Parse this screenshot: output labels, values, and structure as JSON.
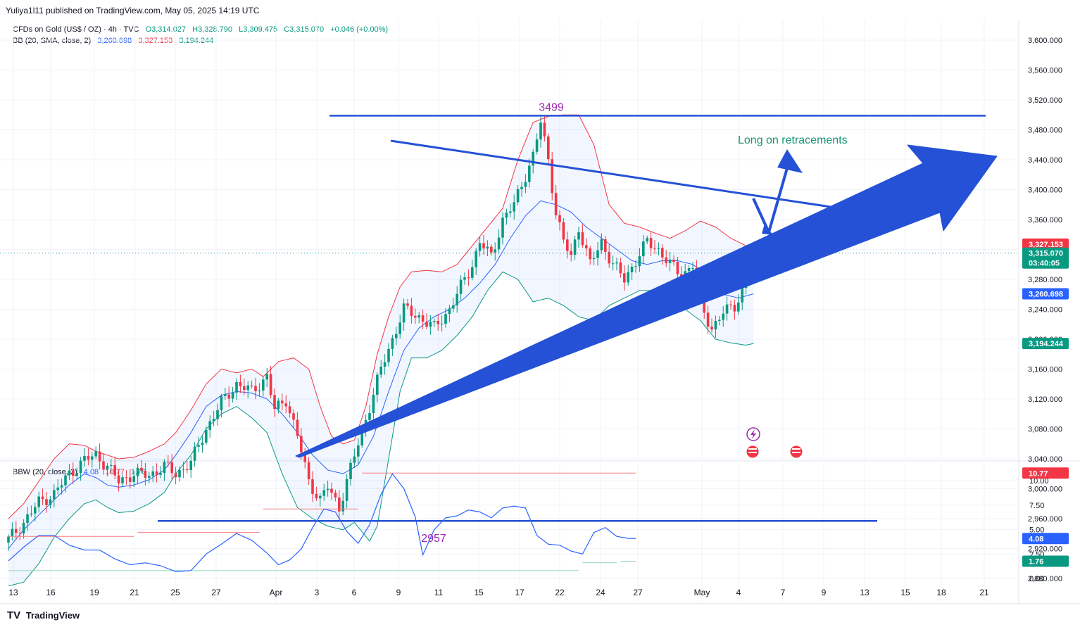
{
  "header": {
    "published": "Yuliya1l11 published on TradingView.com, May 05, 2025 14:19 UTC"
  },
  "legend_main": {
    "symbol": "CFDs on Gold (US$ / OZ) · 4h · TVC",
    "open": "O3,314.027",
    "high": "H3,328.790",
    "low": "L3,309.475",
    "close": "C3,315.070",
    "change": "+0.046 (+0.00%)"
  },
  "legend_bb": {
    "name": "BB (20, SMA, close, 2)",
    "basis": "3,260.698",
    "upper": "3,327.153",
    "lower": "3,194.244"
  },
  "legend_bbw": {
    "name": "BBW (20, close, 2)",
    "value": "4.08",
    "high": "10.77",
    "low": "1.76"
  },
  "annotations": {
    "top_level": "3499",
    "bottom_level": "2957",
    "note": "Long on retracements"
  },
  "price_tags": {
    "upper": "3,327.153",
    "last": "3,315.070",
    "countdown": "03:40:05",
    "basis": "3,260.698",
    "lower": "3,194.244"
  },
  "bbw_tags": {
    "high": "10.77",
    "value": "4.08",
    "low": "1.76"
  },
  "footer": {
    "brand": "TradingView",
    "logo": "TV"
  },
  "colors": {
    "bull": "#089981",
    "bear": "#f23645",
    "basis": "#2962ff",
    "upper": "#f23645",
    "lower": "#089981",
    "drawing": "#2451d6",
    "note": "#16946f",
    "label": "#9c27b0"
  },
  "chart_data": [
    {
      "type": "candlestick",
      "title": "CFDs on Gold (US$ / OZ) · 4h · TVC",
      "x_ticks": [
        "13",
        "16",
        "19",
        "21",
        "25",
        "27",
        "Apr",
        "3",
        "6",
        "9",
        "11",
        "15",
        "17",
        "22",
        "24",
        "27",
        "May",
        "4",
        "7",
        "9",
        "13",
        "15",
        "18",
        "21"
      ],
      "y_ticks": [
        "2,880.000",
        "2,920.000",
        "2,960.000",
        "3,000.000",
        "3,040.000",
        "3,080.000",
        "3,120.000",
        "3,160.000",
        "3,200.000",
        "3,240.000",
        "3,280.000",
        "3,320.000",
        "3,360.000",
        "3,400.000",
        "3,440.000",
        "3,480.000",
        "3,520.000",
        "3,560.000",
        "3,600.000"
      ],
      "ylim": [
        2860,
        3630
      ],
      "anchors_close": [
        [
          0,
          2932
        ],
        [
          4,
          2955
        ],
        [
          8,
          2982
        ],
        [
          12,
          2993
        ],
        [
          16,
          3020
        ],
        [
          20,
          3038
        ],
        [
          23,
          3045
        ],
        [
          26,
          3030
        ],
        [
          29,
          3010
        ],
        [
          33,
          3020
        ],
        [
          37,
          3018
        ],
        [
          41,
          3030
        ],
        [
          44,
          3020
        ],
        [
          48,
          3035
        ],
        [
          52,
          3080
        ],
        [
          56,
          3115
        ],
        [
          60,
          3140
        ],
        [
          64,
          3130
        ],
        [
          68,
          3150
        ],
        [
          70,
          3105
        ],
        [
          73,
          3120
        ],
        [
          76,
          3070
        ],
        [
          79,
          3010
        ],
        [
          82,
          2985
        ],
        [
          84,
          3002
        ],
        [
          87,
          2975
        ],
        [
          89,
          3010
        ],
        [
          92,
          3060
        ],
        [
          95,
          3110
        ],
        [
          98,
          3160
        ],
        [
          101,
          3200
        ],
        [
          104,
          3240
        ],
        [
          108,
          3230
        ],
        [
          112,
          3215
        ],
        [
          116,
          3240
        ],
        [
          119,
          3270
        ],
        [
          122,
          3300
        ],
        [
          124,
          3330
        ],
        [
          127,
          3310
        ],
        [
          130,
          3360
        ],
        [
          133,
          3380
        ],
        [
          136,
          3420
        ],
        [
          138,
          3445
        ],
        [
          140,
          3490
        ],
        [
          142,
          3440
        ],
        [
          144,
          3370
        ],
        [
          146,
          3330
        ],
        [
          148,
          3310
        ],
        [
          150,
          3350
        ],
        [
          153,
          3300
        ],
        [
          156,
          3330
        ],
        [
          159,
          3300
        ],
        [
          162,
          3280
        ],
        [
          165,
          3305
        ],
        [
          168,
          3330
        ],
        [
          171,
          3320
        ],
        [
          174,
          3300
        ],
        [
          177,
          3285
        ],
        [
          180,
          3300
        ],
        [
          182,
          3245
        ],
        [
          185,
          3215
        ],
        [
          188,
          3235
        ],
        [
          191,
          3245
        ],
        [
          193,
          3265
        ],
        [
          195,
          3310
        ],
        [
          196,
          3315
        ]
      ],
      "bb_upper_anchors": [
        [
          0,
          2960
        ],
        [
          4,
          2980
        ],
        [
          8,
          3010
        ],
        [
          12,
          3040
        ],
        [
          16,
          3060
        ],
        [
          20,
          3058
        ],
        [
          23,
          3050
        ],
        [
          26,
          3045
        ],
        [
          29,
          3040
        ],
        [
          33,
          3042
        ],
        [
          37,
          3050
        ],
        [
          41,
          3060
        ],
        [
          44,
          3075
        ],
        [
          48,
          3105
        ],
        [
          52,
          3140
        ],
        [
          56,
          3160
        ],
        [
          60,
          3155
        ],
        [
          64,
          3160
        ],
        [
          67,
          3150
        ],
        [
          71,
          3170
        ],
        [
          75,
          3175
        ],
        [
          79,
          3160
        ],
        [
          82,
          3110
        ],
        [
          85,
          3070
        ],
        [
          88,
          3060
        ],
        [
          91,
          3065
        ],
        [
          94,
          3110
        ],
        [
          97,
          3180
        ],
        [
          100,
          3230
        ],
        [
          103,
          3270
        ],
        [
          106,
          3290
        ],
        [
          110,
          3292
        ],
        [
          114,
          3290
        ],
        [
          118,
          3300
        ],
        [
          122,
          3325
        ],
        [
          126,
          3350
        ],
        [
          130,
          3375
        ],
        [
          134,
          3440
        ],
        [
          138,
          3490
        ],
        [
          142,
          3498
        ],
        [
          146,
          3500
        ],
        [
          150,
          3500
        ],
        [
          154,
          3460
        ],
        [
          158,
          3380
        ],
        [
          162,
          3355
        ],
        [
          166,
          3350
        ],
        [
          170,
          3342
        ],
        [
          174,
          3335
        ],
        [
          178,
          3345
        ],
        [
          182,
          3358
        ],
        [
          186,
          3350
        ],
        [
          190,
          3335
        ],
        [
          194,
          3325
        ],
        [
          196,
          3327
        ]
      ],
      "bb_basis_anchors": [
        [
          0,
          2920
        ],
        [
          4,
          2945
        ],
        [
          8,
          2965
        ],
        [
          12,
          2985
        ],
        [
          16,
          3005
        ],
        [
          20,
          3020
        ],
        [
          23,
          3015
        ],
        [
          26,
          3005
        ],
        [
          29,
          3002
        ],
        [
          33,
          3005
        ],
        [
          37,
          3012
        ],
        [
          41,
          3025
        ],
        [
          44,
          3045
        ],
        [
          48,
          3075
        ],
        [
          52,
          3110
        ],
        [
          56,
          3125
        ],
        [
          60,
          3130
        ],
        [
          64,
          3128
        ],
        [
          68,
          3120
        ],
        [
          72,
          3100
        ],
        [
          76,
          3075
        ],
        [
          80,
          3045
        ],
        [
          84,
          3025
        ],
        [
          88,
          3020
        ],
        [
          92,
          3032
        ],
        [
          96,
          3070
        ],
        [
          100,
          3130
        ],
        [
          104,
          3185
        ],
        [
          108,
          3215
        ],
        [
          112,
          3230
        ],
        [
          116,
          3240
        ],
        [
          120,
          3255
        ],
        [
          124,
          3275
        ],
        [
          128,
          3300
        ],
        [
          132,
          3335
        ],
        [
          136,
          3365
        ],
        [
          140,
          3385
        ],
        [
          144,
          3380
        ],
        [
          148,
          3370
        ],
        [
          152,
          3350
        ],
        [
          156,
          3335
        ],
        [
          160,
          3320
        ],
        [
          164,
          3305
        ],
        [
          168,
          3300
        ],
        [
          172,
          3305
        ],
        [
          176,
          3305
        ],
        [
          180,
          3300
        ],
        [
          184,
          3285
        ],
        [
          188,
          3260
        ],
        [
          192,
          3255
        ],
        [
          196,
          3260.7
        ]
      ],
      "bb_lower_anchors": [
        [
          0,
          2870
        ],
        [
          4,
          2875
        ],
        [
          8,
          2900
        ],
        [
          12,
          2935
        ],
        [
          16,
          2960
        ],
        [
          20,
          2980
        ],
        [
          23,
          2985
        ],
        [
          26,
          2975
        ],
        [
          29,
          2968
        ],
        [
          33,
          2970
        ],
        [
          37,
          2980
        ],
        [
          41,
          2995
        ],
        [
          44,
          3020
        ],
        [
          48,
          3045
        ],
        [
          52,
          3080
        ],
        [
          56,
          3100
        ],
        [
          60,
          3110
        ],
        [
          64,
          3095
        ],
        [
          68,
          3075
        ],
        [
          72,
          3020
        ],
        [
          76,
          2975
        ],
        [
          80,
          2960
        ],
        [
          84,
          2950
        ],
        [
          88,
          2945
        ],
        [
          91,
          2955
        ],
        [
          95,
          2930
        ],
        [
          97,
          2950
        ],
        [
          100,
          3040
        ],
        [
          103,
          3130
        ],
        [
          106,
          3175
        ],
        [
          110,
          3175
        ],
        [
          114,
          3185
        ],
        [
          118,
          3205
        ],
        [
          122,
          3230
        ],
        [
          126,
          3265
        ],
        [
          130,
          3290
        ],
        [
          134,
          3280
        ],
        [
          138,
          3250
        ],
        [
          142,
          3255
        ],
        [
          146,
          3245
        ],
        [
          150,
          3230
        ],
        [
          154,
          3225
        ],
        [
          158,
          3245
        ],
        [
          162,
          3255
        ],
        [
          166,
          3265
        ],
        [
          170,
          3265
        ],
        [
          174,
          3255
        ],
        [
          178,
          3240
        ],
        [
          182,
          3225
        ],
        [
          186,
          3200
        ],
        [
          190,
          3195
        ],
        [
          194,
          3192
        ],
        [
          196,
          3194.2
        ]
      ],
      "levels": [
        {
          "label": "3499",
          "value": 3499
        },
        {
          "label": "2957",
          "value": 2957
        }
      ]
    },
    {
      "type": "line",
      "title": "BBW (20, close, 2)",
      "y_ticks": [
        "0.00",
        "2.50",
        "5.00",
        "7.50",
        "10.00"
      ],
      "ylim": [
        -0.3,
        11.3
      ],
      "bbw_anchors": [
        [
          0,
          1.8
        ],
        [
          4,
          3.2
        ],
        [
          8,
          4.4
        ],
        [
          12,
          4.4
        ],
        [
          16,
          3.4
        ],
        [
          20,
          2.9
        ],
        [
          24,
          2.9
        ],
        [
          28,
          2.0
        ],
        [
          32,
          1.4
        ],
        [
          36,
          1.6
        ],
        [
          40,
          1.3
        ],
        [
          44,
          0.7
        ],
        [
          48,
          0.8
        ],
        [
          52,
          2.5
        ],
        [
          56,
          3.5
        ],
        [
          60,
          4.6
        ],
        [
          64,
          3.9
        ],
        [
          68,
          2.6
        ],
        [
          71,
          1.4
        ],
        [
          74,
          1.9
        ],
        [
          77,
          3.0
        ],
        [
          80,
          5.2
        ],
        [
          83,
          7.1
        ],
        [
          86,
          6.8
        ],
        [
          89,
          4.8
        ],
        [
          92,
          3.6
        ],
        [
          95,
          5.5
        ],
        [
          98,
          8.6
        ],
        [
          101,
          10.7
        ],
        [
          104,
          9.2
        ],
        [
          107,
          6.3
        ],
        [
          109,
          2.4
        ],
        [
          112,
          5.0
        ],
        [
          115,
          6.2
        ],
        [
          118,
          6.4
        ],
        [
          121,
          7.0
        ],
        [
          124,
          6.8
        ],
        [
          127,
          6.2
        ],
        [
          130,
          7.2
        ],
        [
          133,
          7.4
        ],
        [
          136,
          7.2
        ],
        [
          139,
          4.4
        ],
        [
          142,
          3.5
        ],
        [
          145,
          3.4
        ],
        [
          148,
          2.8
        ],
        [
          151,
          2.5
        ],
        [
          154,
          4.7
        ],
        [
          157,
          5.2
        ],
        [
          160,
          4.3
        ],
        [
          163,
          4.1
        ],
        [
          165,
          4.08
        ]
      ],
      "high_segments": [
        [
          0,
          33,
          4.3
        ],
        [
          34,
          66,
          4.7
        ],
        [
          67,
          92,
          7.1
        ],
        [
          93,
          165,
          10.77
        ]
      ],
      "low_segments": [
        [
          0,
          150,
          0.8
        ],
        [
          151,
          160,
          1.6
        ],
        [
          161,
          165,
          1.76
        ]
      ]
    }
  ]
}
